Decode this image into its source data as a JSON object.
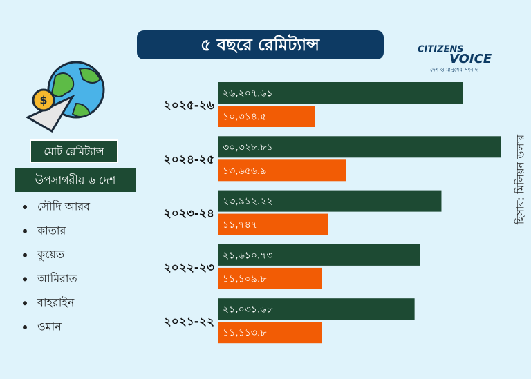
{
  "chart_data": {
    "type": "bar",
    "orientation": "horizontal",
    "title": "৫ বছরে রেমিট্যান্স",
    "unit_note": "হিসাব: মিলিয়ন ডলার",
    "categories": [
      "২০২৫-২৬",
      "২০২৪-২৫",
      "২০২৩-২৪",
      "২০২২-২৩",
      "২০২১-২২"
    ],
    "series": [
      {
        "name": "মোট রেমিট্যান্স",
        "color": "#1d4a33",
        "values": [
          26207.61,
          30328.81,
          23912.22,
          21610.73,
          21031.68
        ],
        "value_labels": [
          "২৬,২০৭.৬১",
          "৩০,৩২৮.৮১",
          "২৩,৯১২.২২",
          "২১,৬১০.৭৩",
          "২১,০৩১.৬৮"
        ]
      },
      {
        "name": "উপসাগরীয় ৬ দেশ",
        "color": "#f25c05",
        "values": [
          10314.5,
          13656.9,
          11747,
          11109.8,
          11113.8
        ],
        "value_labels": [
          "১০,৩১৪.৫",
          "১৩,৬৫৬.৯",
          "১১,৭৪৭",
          "১১,১০৯.৮",
          "১১,১১৩.৮"
        ]
      }
    ],
    "countries": [
      "সৌদি আরব",
      "কাতার",
      "কুয়েত",
      "আমিরাত",
      "বাহরাইন",
      "ওমান"
    ]
  },
  "brand": {
    "line1": "CITIZENS",
    "line2": "VOICE",
    "tagline": "দেশ ও মানুষের সংবাদ"
  }
}
